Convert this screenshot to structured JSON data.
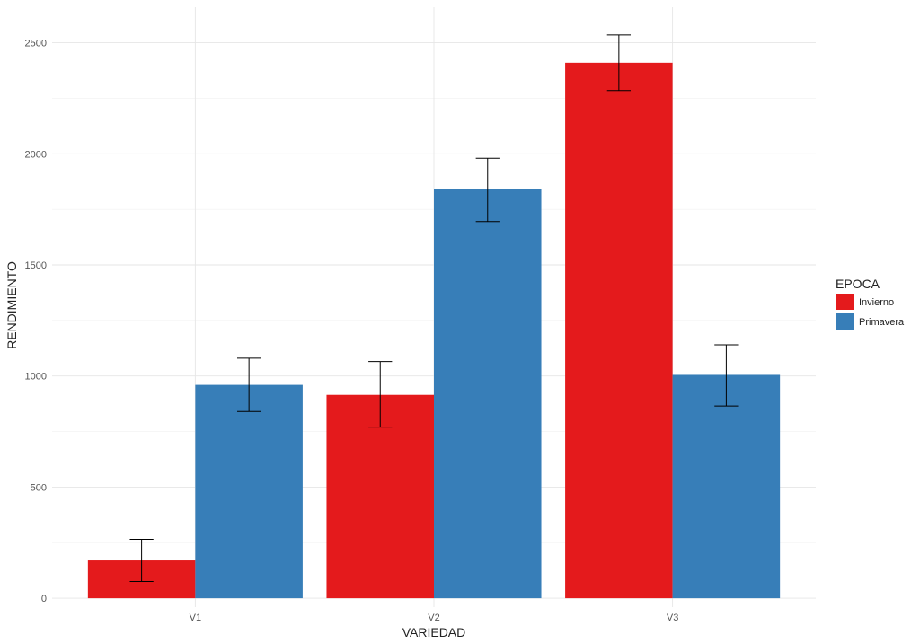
{
  "chart_data": {
    "type": "bar",
    "categories": [
      "V1",
      "V2",
      "V3"
    ],
    "series": [
      {
        "name": "Invierno",
        "color": "#E41A1C",
        "values": [
          170,
          915,
          2410
        ],
        "err_low": [
          75,
          770,
          2285
        ],
        "err_high": [
          265,
          1065,
          2535
        ]
      },
      {
        "name": "Primavera",
        "color": "#377EB8",
        "values": [
          960,
          1840,
          1005
        ],
        "err_low": [
          840,
          1695,
          865
        ],
        "err_high": [
          1080,
          1980,
          1140
        ]
      }
    ],
    "xlabel": "VARIEDAD",
    "ylabel": "RENDIMIENTO",
    "ylim": [
      -40,
      2660
    ],
    "yticks": [
      0,
      500,
      1000,
      1500,
      2000,
      2500
    ],
    "legend": {
      "title": "EPOCA",
      "position": "right"
    },
    "grid": true
  }
}
